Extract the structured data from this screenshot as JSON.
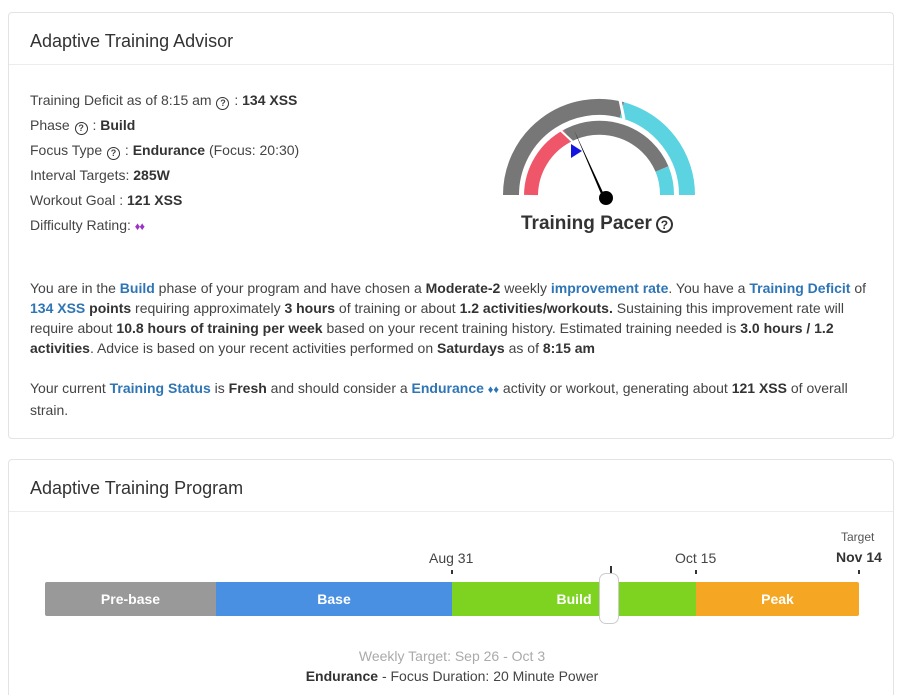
{
  "advisor": {
    "title": "Adaptive Training Advisor",
    "deficit_label": "Training Deficit as of 8:15 am",
    "deficit_value": "134 XSS",
    "phase_label": "Phase",
    "phase_value": "Build",
    "focus_label": "Focus Type",
    "focus_value": "Endurance",
    "focus_detail": "(Focus: 20:30)",
    "interval_label": "Interval Targets:",
    "interval_value": "285W",
    "goal_label": "Workout Goal :",
    "goal_value": "121 XSS",
    "difficulty_label": "Difficulty Rating:",
    "difficulty_value": "♦♦",
    "pacer_title": "Training Pacer",
    "para1": {
      "t1": "You are in the ",
      "phase": "Build",
      "t2": " phase of your program and have chosen a ",
      "rate": "Moderate-2",
      "t3": " weekly ",
      "improvement": "improvement rate",
      "t4": ". You have a ",
      "deficit_link": "Training Deficit",
      "t5": " of ",
      "deficit_pts": "134 XSS",
      "t6": " points",
      "t7": " requiring approximately ",
      "hours": "3 hours",
      "t8": " of training or about ",
      "activities": "1.2 activities/workouts.",
      "t9": " Sustaining this improvement rate will require about ",
      "weekly_hours": "10.8 hours of training per week",
      "t10": " based on your recent training history. Estimated training needed is ",
      "needed": "3.0 hours / 1.2 activities",
      "t11": ". Advice is based on your recent activities performed on ",
      "days": "Saturdays",
      "t12": " as of ",
      "time": "8:15 am"
    },
    "para2": {
      "t1": "Your current ",
      "status_link": "Training Status",
      "t2": " is ",
      "status": "Fresh",
      "t3": " and should consider a ",
      "type_link": "Endurance",
      "diamonds": "♦♦",
      "t4": " activity or workout, generating about ",
      "xss": "121 XSS",
      "t5": " of overall strain."
    },
    "gauge_colors": {
      "red": "#f0566a",
      "gray": "#777777",
      "cyan": "#5bd3e0",
      "marker": "#1515e0"
    }
  },
  "program": {
    "title": "Adaptive Training Program",
    "phases": [
      {
        "label": "Pre-base",
        "color": "#999999"
      },
      {
        "label": "Base",
        "color": "#4a90e2"
      },
      {
        "label": "Build",
        "color": "#7ed321"
      },
      {
        "label": "Peak",
        "color": "#f5a623"
      }
    ],
    "date_aug": "Aug 31",
    "date_oct": "Oct 15",
    "target_label": "Target",
    "target_date": "Nov 14",
    "weekly_target": "Weekly Target: Sep 26 - Oct 3",
    "focus_type": "Endurance",
    "focus_detail": " - Focus Duration: 20 Minute Power"
  }
}
